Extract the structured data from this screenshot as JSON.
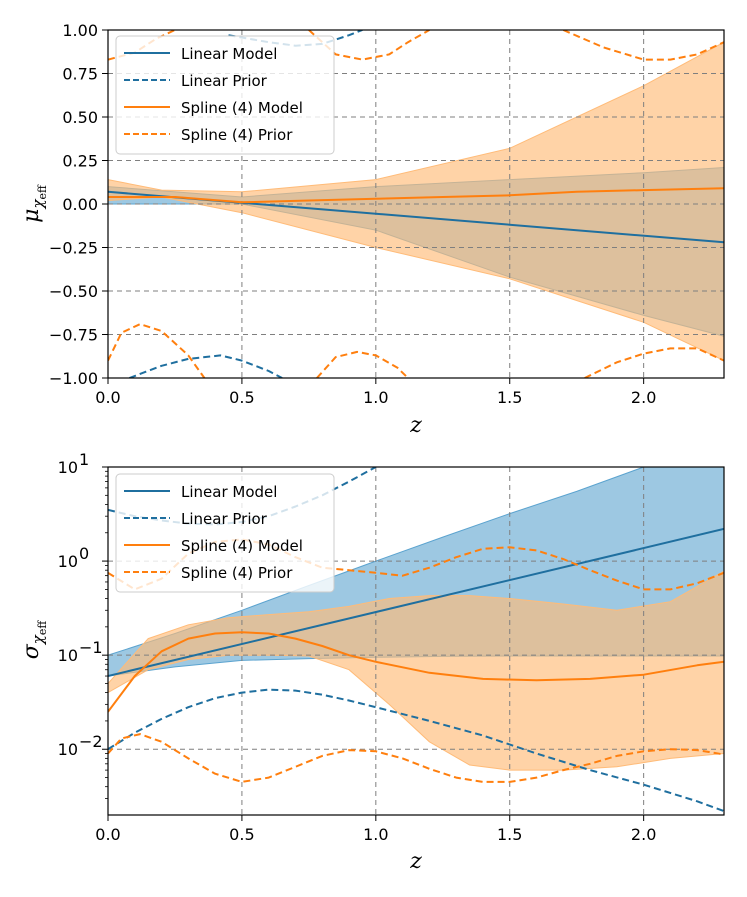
{
  "colors": {
    "linear": "#1f6f9f",
    "spline": "#ff7f0e",
    "linear_fill": "#5ba3cf",
    "spline_fill": "#ffbb78",
    "overlap_fill": "#b89a78"
  },
  "chart_data": [
    {
      "type": "line",
      "title": "",
      "xlabel": "z",
      "ylabel": "μ",
      "ylabel_sub": "χ",
      "ylabel_subsub": "eff",
      "xlim": [
        0,
        2.3
      ],
      "ylim": [
        -1,
        1
      ],
      "yscale": "linear",
      "xticks": [
        0,
        0.5,
        1,
        1.5,
        2
      ],
      "xtick_labels": [
        "0.0",
        "0.5",
        "1.0",
        "1.5",
        "2.0"
      ],
      "yticks": [
        -1,
        -0.75,
        -0.5,
        -0.25,
        0,
        0.25,
        0.5,
        0.75,
        1
      ],
      "ytick_labels": [
        "−1.00",
        "−0.75",
        "−0.50",
        "−0.25",
        "0.00",
        "0.25",
        "0.50",
        "0.75",
        "1.00"
      ],
      "legend": [
        "Linear Model",
        "Linear Prior",
        "Spline (4) Model",
        "Spline (4) Prior"
      ],
      "legend_position": "upper-left",
      "series": [
        {
          "name": "Linear Model band",
          "kind": "band",
          "color": "linear",
          "x": [
            0,
            0.5,
            1,
            1.5,
            2,
            2.3
          ],
          "lower": [
            0,
            0,
            -0.15,
            -0.42,
            -0.64,
            -0.76
          ],
          "upper": [
            0.1,
            0.04,
            0.1,
            0.14,
            0.18,
            0.21
          ]
        },
        {
          "name": "Spline (4) Model band",
          "kind": "band",
          "color": "spline",
          "x": [
            0,
            0.2,
            0.5,
            1,
            1.5,
            2,
            2.3
          ],
          "lower": [
            0.02,
            0.04,
            -0.05,
            -0.25,
            -0.43,
            -0.68,
            -0.9
          ],
          "upper": [
            0.14,
            0.08,
            0.07,
            0.14,
            0.32,
            0.68,
            0.93
          ]
        },
        {
          "name": "Linear Model",
          "kind": "line",
          "color": "linear",
          "dash": false,
          "x": [
            0,
            2.3
          ],
          "y": [
            0.07,
            -0.22
          ]
        },
        {
          "name": "Spline (4) Model",
          "kind": "line",
          "color": "spline",
          "dash": false,
          "x": [
            0,
            0.25,
            0.5,
            0.75,
            1,
            1.25,
            1.5,
            1.75,
            2,
            2.3
          ],
          "y": [
            0.04,
            0.04,
            0.01,
            0.02,
            0.03,
            0.04,
            0.05,
            0.07,
            0.08,
            0.09
          ]
        },
        {
          "name": "Linear Prior upper",
          "kind": "line",
          "color": "linear",
          "dash": true,
          "x": [
            0.45,
            0.6,
            0.7,
            0.8,
            0.9,
            0.95
          ],
          "y": [
            0.97,
            0.93,
            0.91,
            0.92,
            0.97,
            1.0
          ]
        },
        {
          "name": "Linear Prior lower",
          "kind": "line",
          "color": "linear",
          "dash": true,
          "x": [
            0.08,
            0.2,
            0.3,
            0.42,
            0.5,
            0.6,
            0.65
          ],
          "y": [
            -1.0,
            -0.93,
            -0.89,
            -0.87,
            -0.9,
            -0.96,
            -1.0
          ]
        },
        {
          "name": "Spline (4) Prior upper",
          "kind": "line",
          "color": "spline",
          "dash": true,
          "x": [
            0,
            0.1,
            0.18,
            0.25
          ],
          "y": [
            0.83,
            0.87,
            0.95,
            1.0
          ],
          "x2": [
            0.75,
            0.85,
            0.95,
            1.05,
            1.12,
            1.2
          ],
          "y2": [
            1.0,
            0.86,
            0.83,
            0.86,
            0.93,
            1.0
          ],
          "x3": [
            1.7,
            1.85,
            2.0,
            2.1,
            2.2,
            2.3
          ],
          "y3": [
            1.0,
            0.9,
            0.83,
            0.83,
            0.86,
            0.93
          ]
        },
        {
          "name": "Spline (4) Prior lower",
          "kind": "line",
          "color": "spline",
          "dash": true,
          "x": [
            0,
            0.05,
            0.12,
            0.2,
            0.3,
            0.36
          ],
          "y": [
            -0.9,
            -0.74,
            -0.69,
            -0.73,
            -0.87,
            -1.0
          ],
          "x2": [
            0.78,
            0.85,
            0.93,
            1.0,
            1.08,
            1.12
          ],
          "y2": [
            -1.0,
            -0.88,
            -0.85,
            -0.87,
            -0.94,
            -1.0
          ],
          "x3": [
            1.78,
            1.9,
            2.0,
            2.1,
            2.2,
            2.3
          ],
          "y3": [
            -1.0,
            -0.91,
            -0.86,
            -0.83,
            -0.83,
            -0.9
          ]
        }
      ]
    },
    {
      "type": "line",
      "title": "",
      "xlabel": "z",
      "ylabel": "σ",
      "ylabel_sub": "χ",
      "ylabel_subsub": "eff",
      "xlim": [
        0,
        2.3
      ],
      "ylim": [
        0.002,
        10
      ],
      "yscale": "log",
      "xticks": [
        0,
        0.5,
        1,
        1.5,
        2
      ],
      "xtick_labels": [
        "0.0",
        "0.5",
        "1.0",
        "1.5",
        "2.0"
      ],
      "yticks": [
        0.01,
        0.1,
        1,
        10
      ],
      "ytick_labels": [
        "10",
        "10",
        "10",
        "10"
      ],
      "ytick_exps": [
        "−2",
        "−1",
        "0",
        "1"
      ],
      "legend": [
        "Linear Model",
        "Linear Prior",
        "Spline (4) Model",
        "Spline (4) Prior"
      ],
      "legend_position": "upper-left",
      "series": [
        {
          "name": "Linear Model band",
          "kind": "band",
          "color": "linear",
          "x": [
            0,
            0.25,
            0.5,
            0.75,
            1,
            1.25,
            1.5,
            1.75,
            2,
            2.3
          ],
          "lower": [
            0.06,
            0.075,
            0.088,
            0.092,
            0.095,
            0.097,
            0.098,
            0.098,
            0.098,
            0.098
          ],
          "upper": [
            0.1,
            0.17,
            0.3,
            0.55,
            1.0,
            1.8,
            3.2,
            5.5,
            10,
            10
          ]
        },
        {
          "name": "Spline (4) Model band",
          "kind": "band",
          "color": "spline",
          "x": [
            0,
            0.15,
            0.3,
            0.45,
            0.6,
            0.75,
            0.9,
            1.05,
            1.2,
            1.35,
            1.5,
            1.7,
            1.9,
            2.1,
            2.3
          ],
          "lower": [
            0.04,
            0.07,
            0.09,
            0.1,
            0.1,
            0.098,
            0.07,
            0.03,
            0.012,
            0.0068,
            0.006,
            0.006,
            0.0065,
            0.008,
            0.009
          ],
          "upper": [
            0.05,
            0.15,
            0.21,
            0.25,
            0.27,
            0.29,
            0.33,
            0.4,
            0.43,
            0.43,
            0.4,
            0.35,
            0.3,
            0.37,
            0.78
          ]
        },
        {
          "name": "Linear Model",
          "kind": "line",
          "color": "linear",
          "dash": false,
          "x": [
            0,
            2.3
          ],
          "y": [
            0.06,
            2.2
          ]
        },
        {
          "name": "Spline (4) Model",
          "kind": "line",
          "color": "spline",
          "dash": false,
          "x": [
            0,
            0.1,
            0.2,
            0.3,
            0.4,
            0.5,
            0.6,
            0.7,
            0.8,
            0.9,
            1.0,
            1.2,
            1.4,
            1.6,
            1.8,
            2.0,
            2.2,
            2.3
          ],
          "y": [
            0.025,
            0.06,
            0.11,
            0.15,
            0.17,
            0.175,
            0.17,
            0.15,
            0.125,
            0.1,
            0.085,
            0.065,
            0.056,
            0.054,
            0.056,
            0.062,
            0.078,
            0.085
          ]
        },
        {
          "name": "Linear Prior upper",
          "kind": "line",
          "color": "linear",
          "dash": true,
          "x": [
            0,
            0.1,
            0.2,
            0.3,
            0.4,
            0.5,
            0.6,
            0.7,
            0.8,
            0.9,
            1.0
          ],
          "y": [
            3.5,
            3.0,
            2.7,
            2.5,
            2.45,
            2.6,
            3.0,
            3.8,
            5.0,
            7.0,
            10
          ]
        },
        {
          "name": "Linear Prior lower",
          "kind": "line",
          "color": "linear",
          "dash": true,
          "x": [
            0,
            0.1,
            0.2,
            0.3,
            0.4,
            0.5,
            0.6,
            0.7,
            0.8,
            0.9,
            1.0,
            1.2,
            1.4,
            1.6,
            1.8,
            2.0,
            2.2,
            2.3
          ],
          "y": [
            0.01,
            0.015,
            0.021,
            0.028,
            0.035,
            0.04,
            0.043,
            0.042,
            0.038,
            0.033,
            0.028,
            0.02,
            0.014,
            0.009,
            0.006,
            0.0042,
            0.0028,
            0.0022
          ]
        },
        {
          "name": "Spline (4) Prior upper",
          "kind": "line",
          "color": "spline",
          "dash": true,
          "x": [
            0,
            0.1,
            0.2,
            0.3,
            0.4,
            0.5,
            0.6,
            0.7,
            0.8,
            0.9,
            1.0,
            1.1,
            1.2,
            1.3,
            1.4,
            1.5,
            1.6,
            1.7,
            1.8,
            1.9,
            2.0,
            2.1,
            2.2,
            2.3
          ],
          "y": [
            0.75,
            0.5,
            0.65,
            1.2,
            1.6,
            1.7,
            1.5,
            1.1,
            0.85,
            0.8,
            0.75,
            0.7,
            0.85,
            1.1,
            1.35,
            1.4,
            1.3,
            1.05,
            0.8,
            0.62,
            0.5,
            0.5,
            0.58,
            0.75
          ]
        },
        {
          "name": "Spline (4) Prior lower",
          "kind": "line",
          "color": "spline",
          "dash": true,
          "x": [
            0,
            0.05,
            0.12,
            0.2,
            0.3,
            0.4,
            0.5,
            0.6,
            0.7,
            0.8,
            0.9,
            1.0,
            1.1,
            1.2,
            1.3,
            1.4,
            1.5,
            1.6,
            1.7,
            1.8,
            1.9,
            2.0,
            2.1,
            2.2,
            2.3
          ],
          "y": [
            0.009,
            0.013,
            0.0145,
            0.012,
            0.008,
            0.0055,
            0.0045,
            0.005,
            0.0065,
            0.0085,
            0.0098,
            0.0095,
            0.008,
            0.0062,
            0.005,
            0.0045,
            0.0045,
            0.005,
            0.006,
            0.007,
            0.0085,
            0.0095,
            0.01,
            0.0098,
            0.0088
          ]
        }
      ]
    }
  ]
}
